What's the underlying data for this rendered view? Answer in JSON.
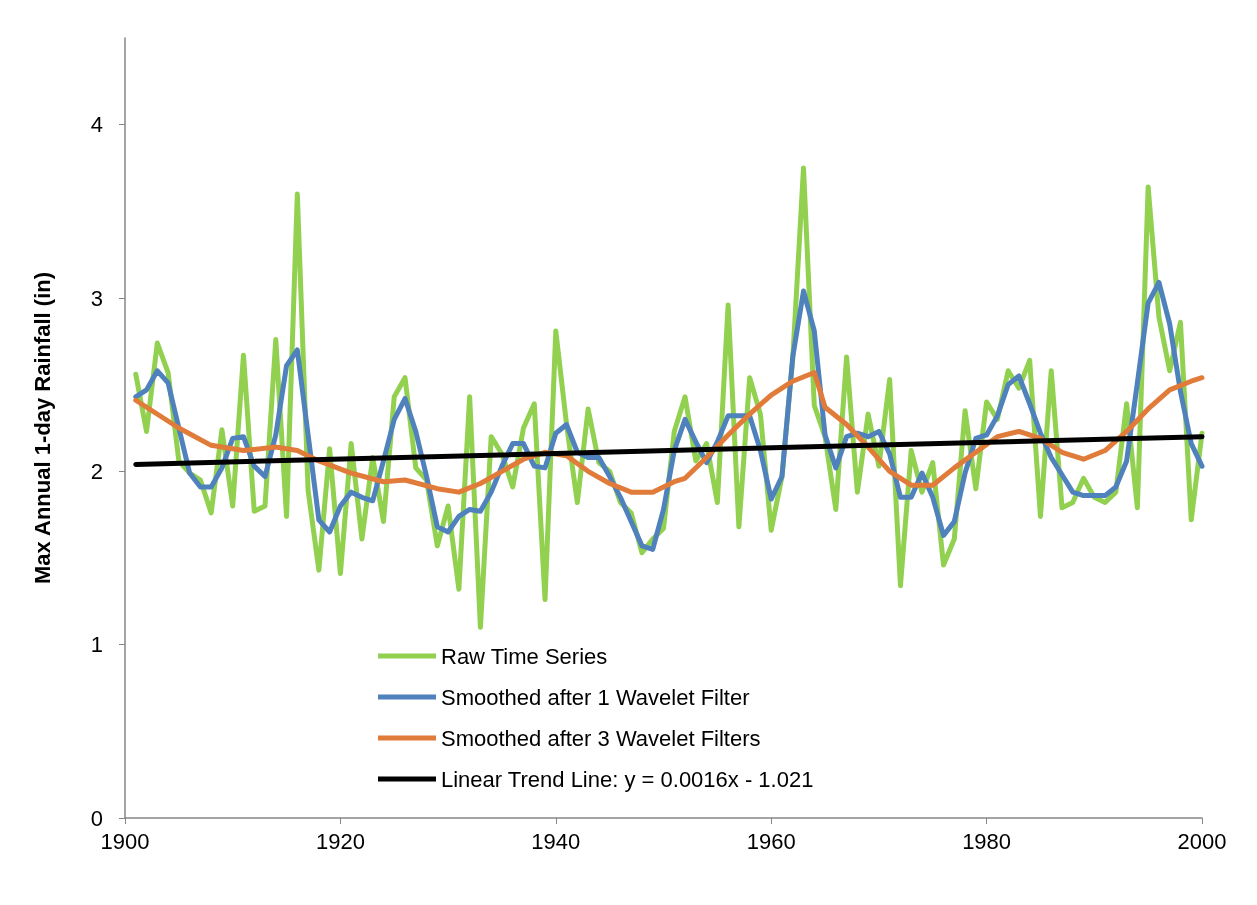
{
  "chart_data": {
    "type": "line",
    "ylabel": "Max Annual 1-day Rainfall (in)",
    "x": [
      1901,
      1902,
      1903,
      1904,
      1905,
      1906,
      1907,
      1908,
      1909,
      1910,
      1911,
      1912,
      1913,
      1914,
      1915,
      1916,
      1917,
      1918,
      1919,
      1920,
      1921,
      1922,
      1923,
      1924,
      1925,
      1926,
      1927,
      1928,
      1929,
      1930,
      1931,
      1932,
      1933,
      1934,
      1935,
      1936,
      1937,
      1938,
      1939,
      1940,
      1941,
      1942,
      1943,
      1944,
      1945,
      1946,
      1947,
      1948,
      1949,
      1950,
      1951,
      1952,
      1953,
      1954,
      1955,
      1956,
      1957,
      1958,
      1959,
      1960,
      1961,
      1962,
      1963,
      1964,
      1965,
      1966,
      1967,
      1968,
      1969,
      1970,
      1971,
      1972,
      1973,
      1974,
      1975,
      1976,
      1977,
      1978,
      1979,
      1980,
      1981,
      1982,
      1983,
      1984,
      1985,
      1986,
      1987,
      1988,
      1989,
      1990,
      1991,
      1992,
      1993,
      1994,
      1995,
      1996,
      1997,
      1998,
      1999,
      2000
    ],
    "series": [
      {
        "name": "Raw Time Series",
        "color": "#92d050",
        "values": [
          2.56,
          2.23,
          2.74,
          2.57,
          2.06,
          1.99,
          1.95,
          1.76,
          2.24,
          1.8,
          2.67,
          1.77,
          1.8,
          2.76,
          1.74,
          3.6,
          1.89,
          1.43,
          2.13,
          1.41,
          2.16,
          1.61,
          2.08,
          1.71,
          2.43,
          2.54,
          2.02,
          1.95,
          1.57,
          1.8,
          1.32,
          2.43,
          1.1,
          2.2,
          2.1,
          1.91,
          2.25,
          2.39,
          1.26,
          2.81,
          2.27,
          1.82,
          2.36,
          2.05,
          2.0,
          1.82,
          1.76,
          1.53,
          1.61,
          1.67,
          2.23,
          2.43,
          2.06,
          2.16,
          1.82,
          2.96,
          1.68,
          2.54,
          2.33,
          1.66,
          1.97,
          2.65,
          3.75,
          2.38,
          2.2,
          1.78,
          2.66,
          1.88,
          2.33,
          2.03,
          2.53,
          1.34,
          2.12,
          1.88,
          2.05,
          1.46,
          1.61,
          2.35,
          1.9,
          2.4,
          2.3,
          2.58,
          2.48,
          2.64,
          1.74,
          2.58,
          1.79,
          1.82,
          1.96,
          1.85,
          1.82,
          1.88,
          2.39,
          1.79,
          3.64,
          2.89,
          2.58,
          2.86,
          1.72,
          2.22
        ]
      },
      {
        "name": "Smoothed after 1 Wavelet Filter",
        "color": "#4f81bd",
        "values": [
          2.43,
          2.47,
          2.58,
          2.51,
          2.25,
          1.99,
          1.91,
          1.91,
          2.02,
          2.19,
          2.2,
          2.03,
          1.97,
          2.21,
          2.61,
          2.7,
          2.21,
          1.72,
          1.65,
          1.8,
          1.88,
          1.85,
          1.83,
          2.06,
          2.3,
          2.42,
          2.23,
          1.97,
          1.68,
          1.65,
          1.74,
          1.78,
          1.77,
          1.88,
          2.03,
          2.16,
          2.16,
          2.03,
          2.02,
          2.22,
          2.27,
          2.11,
          2.08,
          2.08,
          1.97,
          1.85,
          1.71,
          1.57,
          1.55,
          1.78,
          2.12,
          2.3,
          2.17,
          2.05,
          2.17,
          2.32,
          2.32,
          2.32,
          2.12,
          1.84,
          1.97,
          2.66,
          3.04,
          2.81,
          2.21,
          2.02,
          2.2,
          2.22,
          2.2,
          2.23,
          2.1,
          1.85,
          1.85,
          1.99,
          1.85,
          1.63,
          1.71,
          1.99,
          2.19,
          2.21,
          2.32,
          2.5,
          2.55,
          2.39,
          2.22,
          2.08,
          1.98,
          1.88,
          1.86,
          1.86,
          1.86,
          1.91,
          2.06,
          2.51,
          2.97,
          3.09,
          2.85,
          2.46,
          2.16,
          2.03
        ]
      },
      {
        "name": "Smoothed after 3 Wavelet Filters",
        "color": "#e07b39",
        "x": [
          1901,
          1905,
          1908,
          1911,
          1914,
          1916,
          1918,
          1921,
          1924,
          1926,
          1929,
          1931,
          1933,
          1935,
          1937,
          1939,
          1941,
          1943,
          1945,
          1947,
          1949,
          1951,
          1952,
          1954,
          1956,
          1958,
          1960,
          1962,
          1964,
          1965,
          1967,
          1969,
          1971,
          1973,
          1975,
          1977,
          1979,
          1981,
          1983,
          1985,
          1987,
          1989,
          1991,
          1993,
          1995,
          1997,
          1999,
          2000
        ],
        "values": [
          2.41,
          2.25,
          2.15,
          2.12,
          2.14,
          2.12,
          2.06,
          1.99,
          1.94,
          1.95,
          1.9,
          1.88,
          1.93,
          2.0,
          2.07,
          2.11,
          2.09,
          2.0,
          1.93,
          1.88,
          1.88,
          1.94,
          1.96,
          2.08,
          2.21,
          2.33,
          2.44,
          2.52,
          2.57,
          2.37,
          2.27,
          2.14,
          2.0,
          1.92,
          1.92,
          2.02,
          2.11,
          2.2,
          2.23,
          2.19,
          2.11,
          2.07,
          2.12,
          2.23,
          2.36,
          2.47,
          2.52,
          2.54
        ]
      },
      {
        "name": "Linear Trend Line: y = 0.0016x - 1.021",
        "color": "#000000",
        "x": [
          1901,
          2000
        ],
        "values": [
          2.04,
          2.2
        ]
      }
    ],
    "xlim": [
      1900,
      2000
    ],
    "xticks": [
      1900,
      1920,
      1940,
      1960,
      1980,
      2000
    ],
    "ylim": [
      0,
      4.5
    ],
    "yticks": [
      0,
      1,
      2,
      3,
      4
    ],
    "legend": "bottom",
    "marker": "none",
    "line_style": "solid"
  }
}
